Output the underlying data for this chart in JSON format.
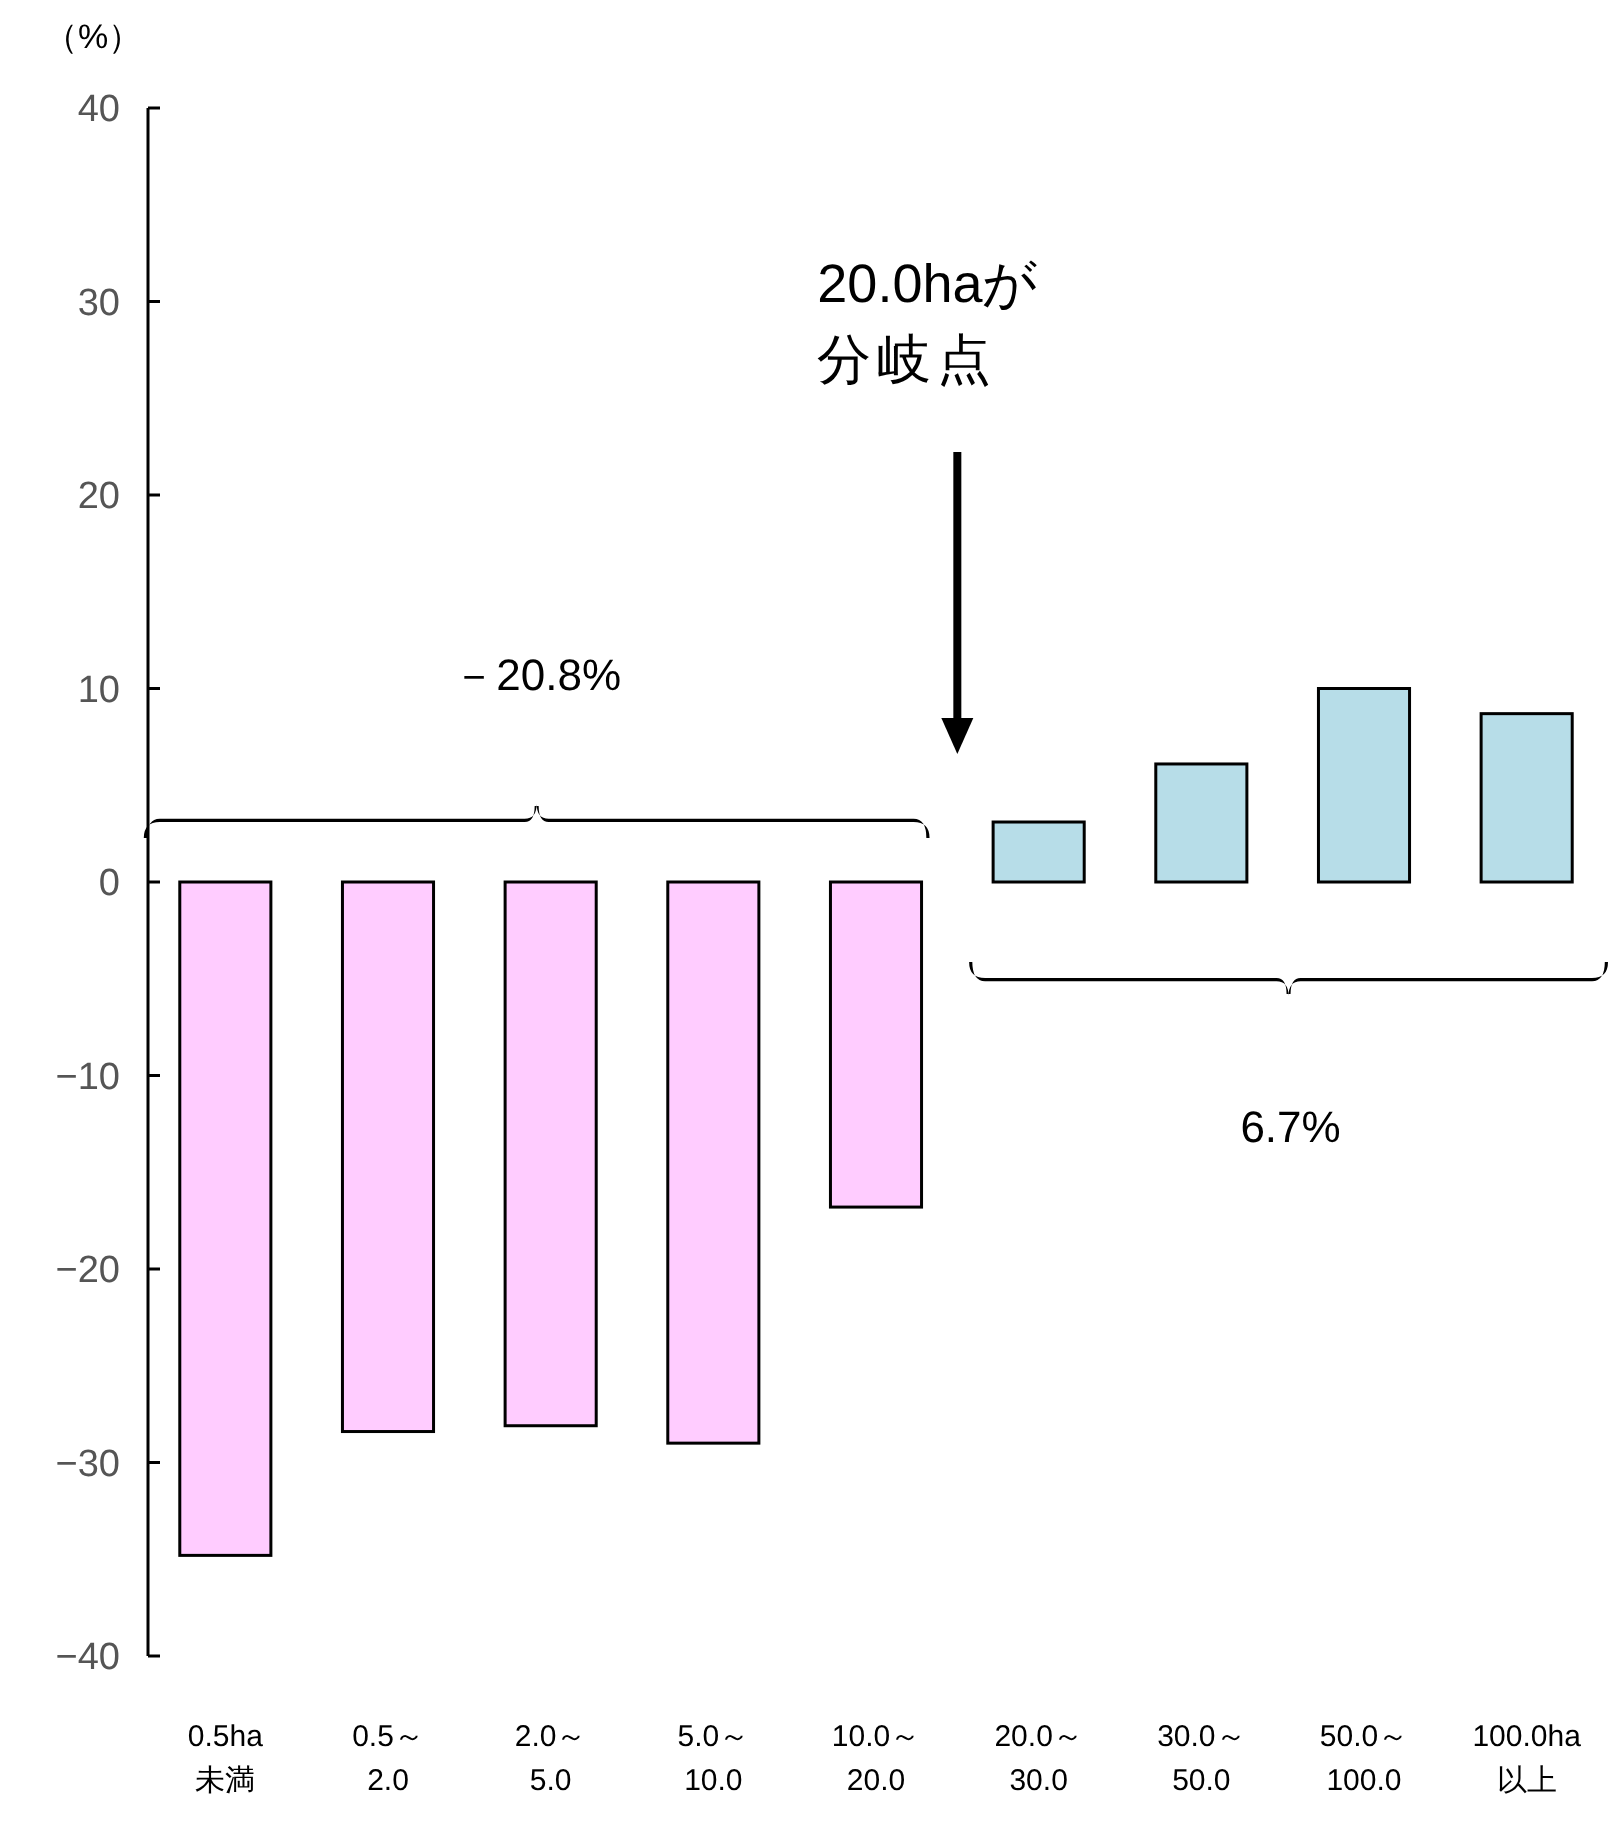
{
  "chart_data": {
    "type": "bar",
    "ylabel": "（%）",
    "categories": [
      "0.5ha\n未満",
      "0.5～\n2.0",
      "2.0～\n5.0",
      "5.0～\n10.0",
      "10.0～\n20.0",
      "20.0～\n30.0",
      "30.0～\n50.0",
      "50.0～\n100.0",
      "100.0ha\n以上"
    ],
    "values": [
      -34.8,
      -28.4,
      -28.1,
      -29.0,
      -16.8,
      3.1,
      6.1,
      10.0,
      8.7
    ],
    "colors": [
      "#ffccff",
      "#ffccff",
      "#ffccff",
      "#ffccff",
      "#ffccff",
      "#b7dde8",
      "#b7dde8",
      "#b7dde8",
      "#b7dde8"
    ],
    "ylim": [
      -40,
      40
    ],
    "yticks": [
      {
        "value": -40,
        "label": "−40"
      },
      {
        "value": -30,
        "label": "−30"
      },
      {
        "value": -20,
        "label": "−20"
      },
      {
        "value": -10,
        "label": "−10"
      },
      0,
      10,
      20,
      30,
      40
    ],
    "annotations": [
      "20.0haが",
      "分岐点",
      "－20.8%",
      "6.7%"
    ],
    "grid": false
  }
}
